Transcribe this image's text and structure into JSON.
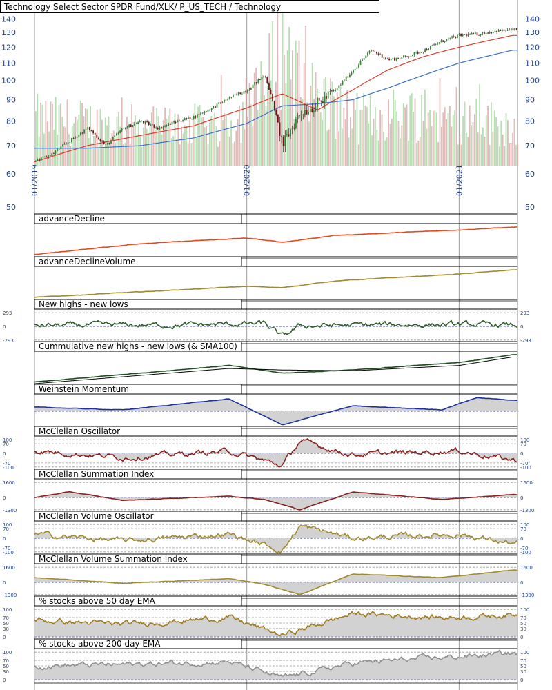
{
  "chart_data": [
    {
      "type": "line",
      "title": "Technology Select Sector SPDR Fund/XLK/ P_US_TECH / Technology",
      "y_ticks": [
        140,
        130,
        120,
        110,
        100,
        90,
        80,
        70,
        60,
        50
      ],
      "ylim": [
        50,
        143
      ],
      "scale": "log",
      "x_ticks": [
        "01/2019",
        "01/2020",
        "01/2021"
      ],
      "x_range": [
        "2019-01",
        "2021-04"
      ],
      "series": [
        {
          "kind": "candlestick",
          "color": "#2e8b2e",
          "x": [
            "2019-01",
            "2019-02",
            "2019-03",
            "2019-04",
            "2019-05",
            "2019-06",
            "2019-07",
            "2019-08",
            "2019-09",
            "2019-10",
            "2019-11",
            "2019-12",
            "2020-01",
            "2020-02",
            "2020-03",
            "2020-04",
            "2020-05",
            "2020-06",
            "2020-07",
            "2020-08",
            "2020-09",
            "2020-10",
            "2020-11",
            "2020-12",
            "2021-01",
            "2021-02",
            "2021-03",
            "2021-04"
          ],
          "values": [
            64,
            67,
            72,
            77,
            70,
            77,
            80,
            77,
            80,
            82,
            86,
            91,
            95,
            103,
            70,
            84,
            88,
            95,
            106,
            118,
            112,
            114,
            118,
            124,
            128,
            129,
            131,
            132
          ]
        },
        {
          "kind": "sma",
          "color": "#e03a2a",
          "x": [
            "2019-01",
            "2019-04",
            "2019-07",
            "2019-10",
            "2020-01",
            "2020-03",
            "2020-05",
            "2020-07",
            "2020-09",
            "2020-11",
            "2021-01",
            "2021-04"
          ],
          "values": [
            64,
            70,
            74,
            78,
            86,
            93,
            85,
            95,
            106,
            114,
            120,
            128
          ]
        },
        {
          "kind": "sma",
          "color": "#3b6fc9",
          "x": [
            "2019-01",
            "2019-04",
            "2019-07",
            "2019-10",
            "2020-01",
            "2020-03",
            "2020-05",
            "2020-07",
            "2020-09",
            "2020-11",
            "2021-01",
            "2021-04"
          ],
          "values": [
            69,
            69,
            70,
            73,
            79,
            87,
            88,
            90,
            96,
            103,
            110,
            118
          ]
        },
        {
          "kind": "volume",
          "color": "#8fc98f",
          "x": [
            "2019-01",
            "2019-06",
            "2019-12",
            "2020-02",
            "2020-03",
            "2020-04",
            "2020-07",
            "2020-10",
            "2021-01",
            "2021-04"
          ],
          "values": [
            0.35,
            0.3,
            0.3,
            0.55,
            1.0,
            0.6,
            0.35,
            0.4,
            0.35,
            0.3
          ]
        }
      ]
    },
    {
      "type": "line",
      "title": "advanceDecline",
      "series": [
        {
          "color": "#e8481e",
          "x": [
            "2019-01",
            "2019-07",
            "2020-01",
            "2020-03",
            "2020-06",
            "2021-01",
            "2021-04"
          ],
          "values": [
            -1.0,
            -0.2,
            0.2,
            -0.1,
            0.4,
            0.8,
            1.0
          ]
        }
      ]
    },
    {
      "type": "line",
      "title": "advanceDeclineVolume",
      "series": [
        {
          "color": "#a08a2c",
          "x": [
            "2019-01",
            "2019-07",
            "2020-01",
            "2020-03",
            "2020-06",
            "2021-01",
            "2021-04"
          ],
          "values": [
            -1.0,
            -0.6,
            -0.2,
            -0.3,
            0.2,
            0.7,
            1.0
          ]
        }
      ]
    },
    {
      "type": "line",
      "title": "New highs - new lows",
      "y_ticks": [
        293,
        0,
        -293
      ],
      "series": [
        {
          "color": "#2f5a2a",
          "x": [
            "2019-01",
            "2019-10",
            "2020-02",
            "2020-03",
            "2020-04",
            "2020-10",
            "2021-04"
          ],
          "values": [
            20,
            30,
            60,
            -230,
            10,
            40,
            30
          ]
        }
      ]
    },
    {
      "type": "line",
      "title": "Cummulative new highs - new lows (& SMA100)",
      "series": [
        {
          "color": "#1f4a1f",
          "x": [
            "2019-01",
            "2019-12",
            "2020-03",
            "2020-07",
            "2021-01",
            "2021-04"
          ],
          "values": [
            -0.8,
            0.3,
            -0.2,
            0.0,
            0.5,
            1.0
          ]
        },
        {
          "color": "#000000",
          "x": [
            "2019-01",
            "2019-12",
            "2020-03",
            "2020-07",
            "2021-01",
            "2021-04"
          ],
          "values": [
            -0.9,
            0.1,
            0.0,
            -0.05,
            0.3,
            0.85
          ]
        }
      ]
    },
    {
      "type": "area",
      "title": "Weinstein Momentum",
      "series": [
        {
          "color": "#1f2f9f",
          "x": [
            "2019-01",
            "2019-06",
            "2019-12",
            "2020-03",
            "2020-07",
            "2020-12",
            "2021-02",
            "2021-04"
          ],
          "values": [
            0.3,
            0.1,
            0.9,
            -1.0,
            0.4,
            0.1,
            1.0,
            0.8
          ]
        }
      ]
    },
    {
      "type": "area",
      "title": "McClellan Oscillator",
      "y_ticks": [
        100,
        70,
        0,
        -70,
        -100
      ],
      "series": [
        {
          "color": "#8a1f1f",
          "x": [
            "2019-01",
            "2019-06",
            "2019-12",
            "2020-03",
            "2020-04",
            "2020-07",
            "2021-01",
            "2021-04"
          ],
          "values": [
            20,
            -30,
            15,
            -90,
            90,
            -10,
            20,
            -50
          ]
        }
      ]
    },
    {
      "type": "area",
      "title": "McClellan Summation Index",
      "y_ticks": [
        1600,
        0,
        -1300
      ],
      "series": [
        {
          "color": "#8a1f1f",
          "x": [
            "2019-01",
            "2019-03",
            "2019-06",
            "2019-12",
            "2020-02",
            "2020-04",
            "2020-07",
            "2020-12",
            "2021-04"
          ],
          "values": [
            0,
            600,
            -300,
            150,
            -200,
            -1300,
            600,
            -200,
            300
          ]
        }
      ]
    },
    {
      "type": "area",
      "title": "McClellan Volume Oscillator",
      "y_ticks": [
        100,
        70,
        0,
        -70,
        -100
      ],
      "series": [
        {
          "color": "#a08a2c",
          "x": [
            "2019-01",
            "2019-06",
            "2019-12",
            "2020-03",
            "2020-04",
            "2020-07",
            "2021-01",
            "2021-04"
          ],
          "values": [
            30,
            -20,
            30,
            -90,
            90,
            0,
            30,
            -40
          ]
        }
      ]
    },
    {
      "type": "area",
      "title": "McClellan Volume Summation Index",
      "y_ticks": [
        1600,
        0,
        -1300
      ],
      "series": [
        {
          "color": "#a08a2c",
          "x": [
            "2019-01",
            "2019-06",
            "2019-12",
            "2020-02",
            "2020-04",
            "2020-07",
            "2020-12",
            "2021-04"
          ],
          "values": [
            500,
            -100,
            400,
            -200,
            -1300,
            900,
            500,
            1300
          ]
        }
      ]
    },
    {
      "type": "area",
      "title": "% stocks above 50 day EMA",
      "y_ticks": [
        100,
        70,
        50,
        30,
        0
      ],
      "series": [
        {
          "color": "#a07a1c",
          "x": [
            "2019-01",
            "2019-06",
            "2019-12",
            "2020-03",
            "2020-07",
            "2020-12",
            "2021-04"
          ],
          "values": [
            60,
            45,
            70,
            5,
            85,
            70,
            80
          ]
        }
      ]
    },
    {
      "type": "area",
      "title": "% stocks above 200 day EMA",
      "y_ticks": [
        100,
        70,
        50,
        30,
        0
      ],
      "series": [
        {
          "color": "#8f8f8f",
          "x": [
            "2019-01",
            "2019-06",
            "2019-12",
            "2020-03",
            "2020-07",
            "2020-12",
            "2021-04"
          ],
          "values": [
            50,
            55,
            65,
            5,
            60,
            80,
            95
          ]
        }
      ]
    }
  ]
}
